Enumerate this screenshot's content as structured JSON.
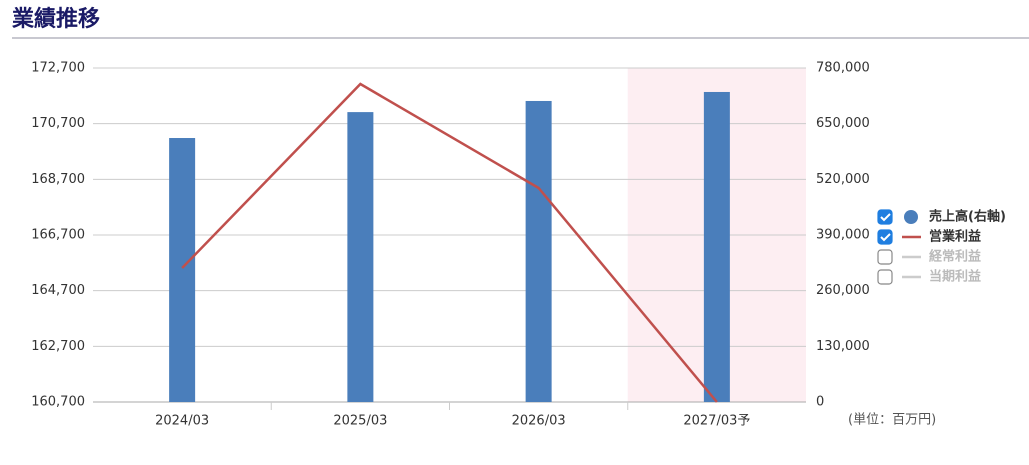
{
  "chart_data": {
    "type": "bar_line",
    "title": "業績推移",
    "unit_note": "(単位：百万円)",
    "categories": [
      "2024/03",
      "2025/03",
      "2026/03",
      "2027/03予"
    ],
    "forecast": [
      false,
      false,
      false,
      true
    ],
    "forecast_color": "#fdeef2",
    "series": [
      {
        "name": "売上高(右軸)",
        "type": "bar",
        "axis": "y2",
        "color": "#4a7ebb",
        "visible": true,
        "values": [
          616500,
          677000,
          703000,
          724000
        ]
      },
      {
        "name": "営業利益",
        "type": "line",
        "axis": "y",
        "color": "#c0504d",
        "visible": true,
        "values": [
          165514,
          172125,
          168389,
          160700
        ]
      },
      {
        "name": "経常利益",
        "type": "line",
        "axis": "y",
        "color": "#cccccc",
        "visible": false,
        "values": [
          null,
          null,
          null,
          null
        ]
      },
      {
        "name": "当期利益",
        "type": "line",
        "axis": "y",
        "color": "#cccccc",
        "visible": false,
        "values": [
          null,
          null,
          null,
          null
        ]
      }
    ],
    "ylim": [
      160700,
      172700
    ],
    "yticks": [
      {
        "value": 160700,
        "label": "160,700"
      },
      {
        "value": 162700,
        "label": "162,700"
      },
      {
        "value": 164700,
        "label": "164,700"
      },
      {
        "value": 166700,
        "label": "166,700"
      },
      {
        "value": 168700,
        "label": "168,700"
      },
      {
        "value": 170700,
        "label": "170,700"
      },
      {
        "value": 172700,
        "label": "172,700"
      }
    ],
    "y2lim": [
      0,
      780000
    ],
    "y2ticks": [
      0,
      {
        "value": 130000,
        "label": "130,000"
      },
      {
        "value": 260000,
        "label": "260,000"
      },
      {
        "value": 390000,
        "label": "390,000"
      },
      {
        "value": 520000,
        "label": "520,000"
      },
      {
        "value": 650000,
        "label": "650,000"
      },
      {
        "value": 780000,
        "label": "780,000"
      }
    ],
    "grid": true
  }
}
